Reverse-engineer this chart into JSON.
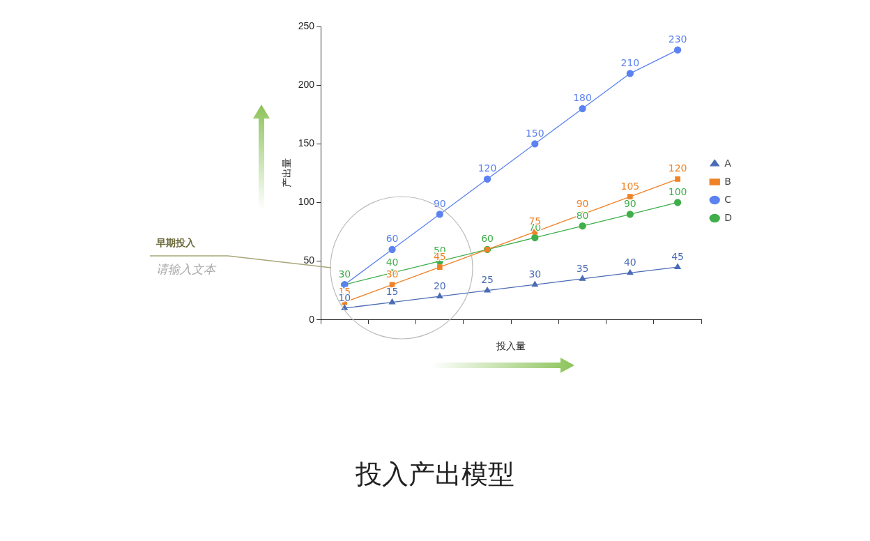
{
  "chart_data": {
    "type": "line",
    "title": "投入产出模型",
    "xlabel": "投入量",
    "ylabel": "产出量",
    "categories": [
      null,
      null,
      null,
      null,
      null,
      null,
      null,
      null
    ],
    "series": [
      {
        "name": "A",
        "color": "#4a6cb5",
        "marker": "triangle",
        "values": [
          10,
          15,
          20,
          25,
          30,
          35,
          40,
          45
        ]
      },
      {
        "name": "B",
        "color": "#ef8227",
        "marker": "square",
        "values": [
          15,
          30,
          45,
          60,
          75,
          90,
          105,
          120
        ],
        "value_labels": [
          "15",
          "30",
          "45",
          null,
          "75",
          "90",
          "105",
          "120"
        ]
      },
      {
        "name": "C",
        "color": "#5b82f0",
        "marker": "circle",
        "values": [
          30,
          60,
          90,
          120,
          150,
          180,
          210,
          230
        ],
        "value_labels": [
          null,
          "60",
          "90",
          "120",
          "150",
          "180",
          "210",
          "230"
        ]
      },
      {
        "name": "D",
        "color": "#3fae4b",
        "marker": "circle",
        "values": [
          30,
          40,
          50,
          60,
          70,
          80,
          90,
          100
        ]
      }
    ],
    "ylim": [
      0,
      250
    ],
    "yticks": [
      0,
      50,
      100,
      150,
      200,
      250
    ],
    "data_labels": true,
    "legend": "right",
    "annotations": [
      "早期投入",
      "请输入文本"
    ]
  }
}
